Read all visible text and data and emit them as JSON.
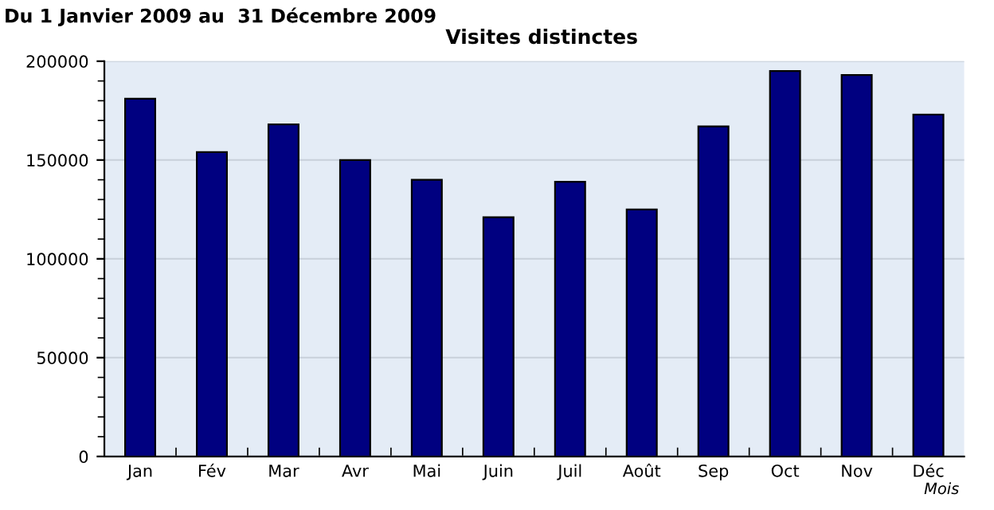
{
  "chart_data": {
    "type": "bar",
    "title": "Visites distinctes",
    "annotations": [
      "Du 1 Janvier 2009 au  31 Décembre 2009"
    ],
    "xlabel": "Mois",
    "categories": [
      "Jan",
      "Fév",
      "Mar",
      "Avr",
      "Mai",
      "Juin",
      "Juil",
      "Août",
      "Sep",
      "Oct",
      "Nov",
      "Déc"
    ],
    "values": [
      181000,
      154000,
      168000,
      150000,
      140000,
      121000,
      139000,
      125000,
      167000,
      195000,
      193000,
      173000
    ],
    "color": "#000080",
    "ylim": [
      0,
      200000
    ],
    "yticks": [
      0,
      50000,
      100000,
      150000,
      200000
    ],
    "grid": "y",
    "legend": false
  }
}
